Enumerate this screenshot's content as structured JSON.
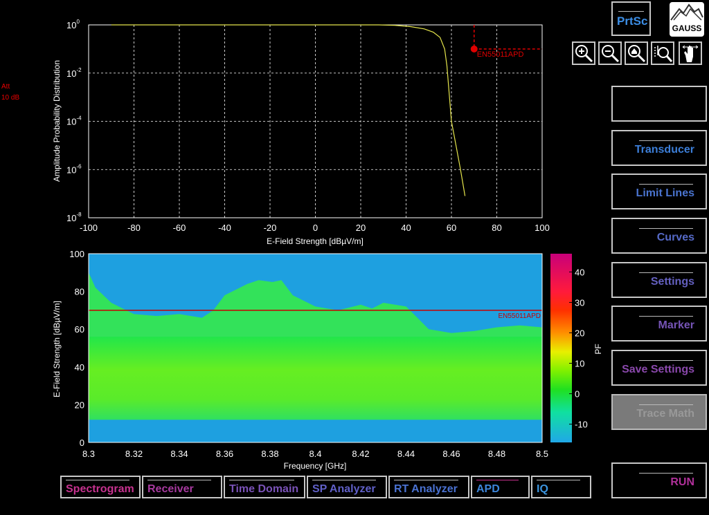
{
  "status": {
    "att_label": "Att",
    "att_value": "10 dB"
  },
  "apd_chart": {
    "type": "line",
    "ylabel": "Amplitude Probability Distribution",
    "xlabel": "E-Field Strength [dBµV/m]",
    "xlim": [
      -100,
      100
    ],
    "x_ticks": [
      -100,
      -80,
      -60,
      -40,
      -20,
      0,
      20,
      40,
      60,
      80,
      100
    ],
    "y_tick_exponents": [
      0,
      -2,
      -4,
      -6,
      -8
    ],
    "y_tick_base": "10",
    "grid": true,
    "trace_color": "#e6e64c",
    "trace": [
      [
        -90,
        1
      ],
      [
        28,
        1
      ],
      [
        35,
        0.96
      ],
      [
        42,
        0.85
      ],
      [
        48,
        0.68
      ],
      [
        52,
        0.5
      ],
      [
        55,
        0.3
      ],
      [
        57,
        0.1
      ],
      [
        58,
        0.02
      ],
      [
        60,
        0.0001
      ],
      [
        62,
        1e-05
      ],
      [
        64,
        1e-06
      ],
      [
        66,
        8e-08
      ]
    ],
    "limit_line": {
      "name": "EN55011APD",
      "x": 70,
      "y": 0.1,
      "color": "#e00000"
    }
  },
  "spectrogram": {
    "type": "heatmap",
    "xlabel": "Frequency [GHz]",
    "ylabel": "E-Field Strength [dBµV/m]",
    "xlim": [
      8.3,
      8.5
    ],
    "ylim": [
      0,
      100
    ],
    "x_ticks": [
      "8.3",
      "8.32",
      "8.34",
      "8.36",
      "8.38",
      "8.4",
      "8.42",
      "8.44",
      "8.46",
      "8.48",
      "8.5"
    ],
    "y_ticks": [
      0,
      20,
      40,
      60,
      80,
      100
    ],
    "limit_line": {
      "name": "EN55011APD",
      "y": 70,
      "color": "#c80000"
    },
    "upper_edge": [
      [
        8.3,
        90
      ],
      [
        8.303,
        82
      ],
      [
        8.31,
        74
      ],
      [
        8.32,
        68
      ],
      [
        8.33,
        67
      ],
      [
        8.34,
        68
      ],
      [
        8.35,
        66
      ],
      [
        8.355,
        70
      ],
      [
        8.36,
        78
      ],
      [
        8.37,
        84
      ],
      [
        8.375,
        86
      ],
      [
        8.381,
        85
      ],
      [
        8.385,
        86
      ],
      [
        8.39,
        78
      ],
      [
        8.4,
        72
      ],
      [
        8.41,
        70
      ],
      [
        8.42,
        73
      ],
      [
        8.425,
        71
      ],
      [
        8.43,
        74
      ],
      [
        8.44,
        72
      ],
      [
        8.445,
        66
      ],
      [
        8.45,
        60
      ],
      [
        8.46,
        58
      ],
      [
        8.47,
        59
      ],
      [
        8.48,
        61
      ],
      [
        8.49,
        62
      ],
      [
        8.5,
        61
      ]
    ],
    "bottom_band_top": 12
  },
  "colorbar": {
    "label": "PF",
    "ticks": [
      40,
      30,
      20,
      10,
      0,
      -10
    ],
    "range": [
      -16,
      46
    ]
  },
  "toolbar": {
    "prtsc": "PrtSc",
    "logo": "GAUSS"
  },
  "side_menu": [
    {
      "label": "",
      "color": "#3c82dc",
      "disabled": false
    },
    {
      "label": "Transducer",
      "color": "#3c7ed8",
      "disabled": false
    },
    {
      "label": "Limit Lines",
      "color": "#4a74d0",
      "disabled": false
    },
    {
      "label": "Curves",
      "color": "#566ac8",
      "disabled": false
    },
    {
      "label": "Settings",
      "color": "#6460c0",
      "disabled": false
    },
    {
      "label": "Marker",
      "color": "#7654b6",
      "disabled": false
    },
    {
      "label": "Save Settings",
      "color": "#8a48ac",
      "disabled": false
    },
    {
      "label": "Trace Math",
      "color": "#999999",
      "disabled": true
    },
    {
      "label": "RUN",
      "color": "#b0309a",
      "disabled": false
    }
  ],
  "tabs": [
    {
      "label": "Spectrogram",
      "color": "#c83290"
    },
    {
      "label": "Receiver",
      "color": "#a83aa0"
    },
    {
      "label": "Time Domain",
      "color": "#7a52b8"
    },
    {
      "label": "SP Analyzer",
      "color": "#6060c8"
    },
    {
      "label": "RT Analyzer",
      "color": "#4a72d2"
    },
    {
      "label": "APD",
      "color": "#3c86dc"
    },
    {
      "label": "IQ",
      "color": "#3c96e0"
    }
  ]
}
